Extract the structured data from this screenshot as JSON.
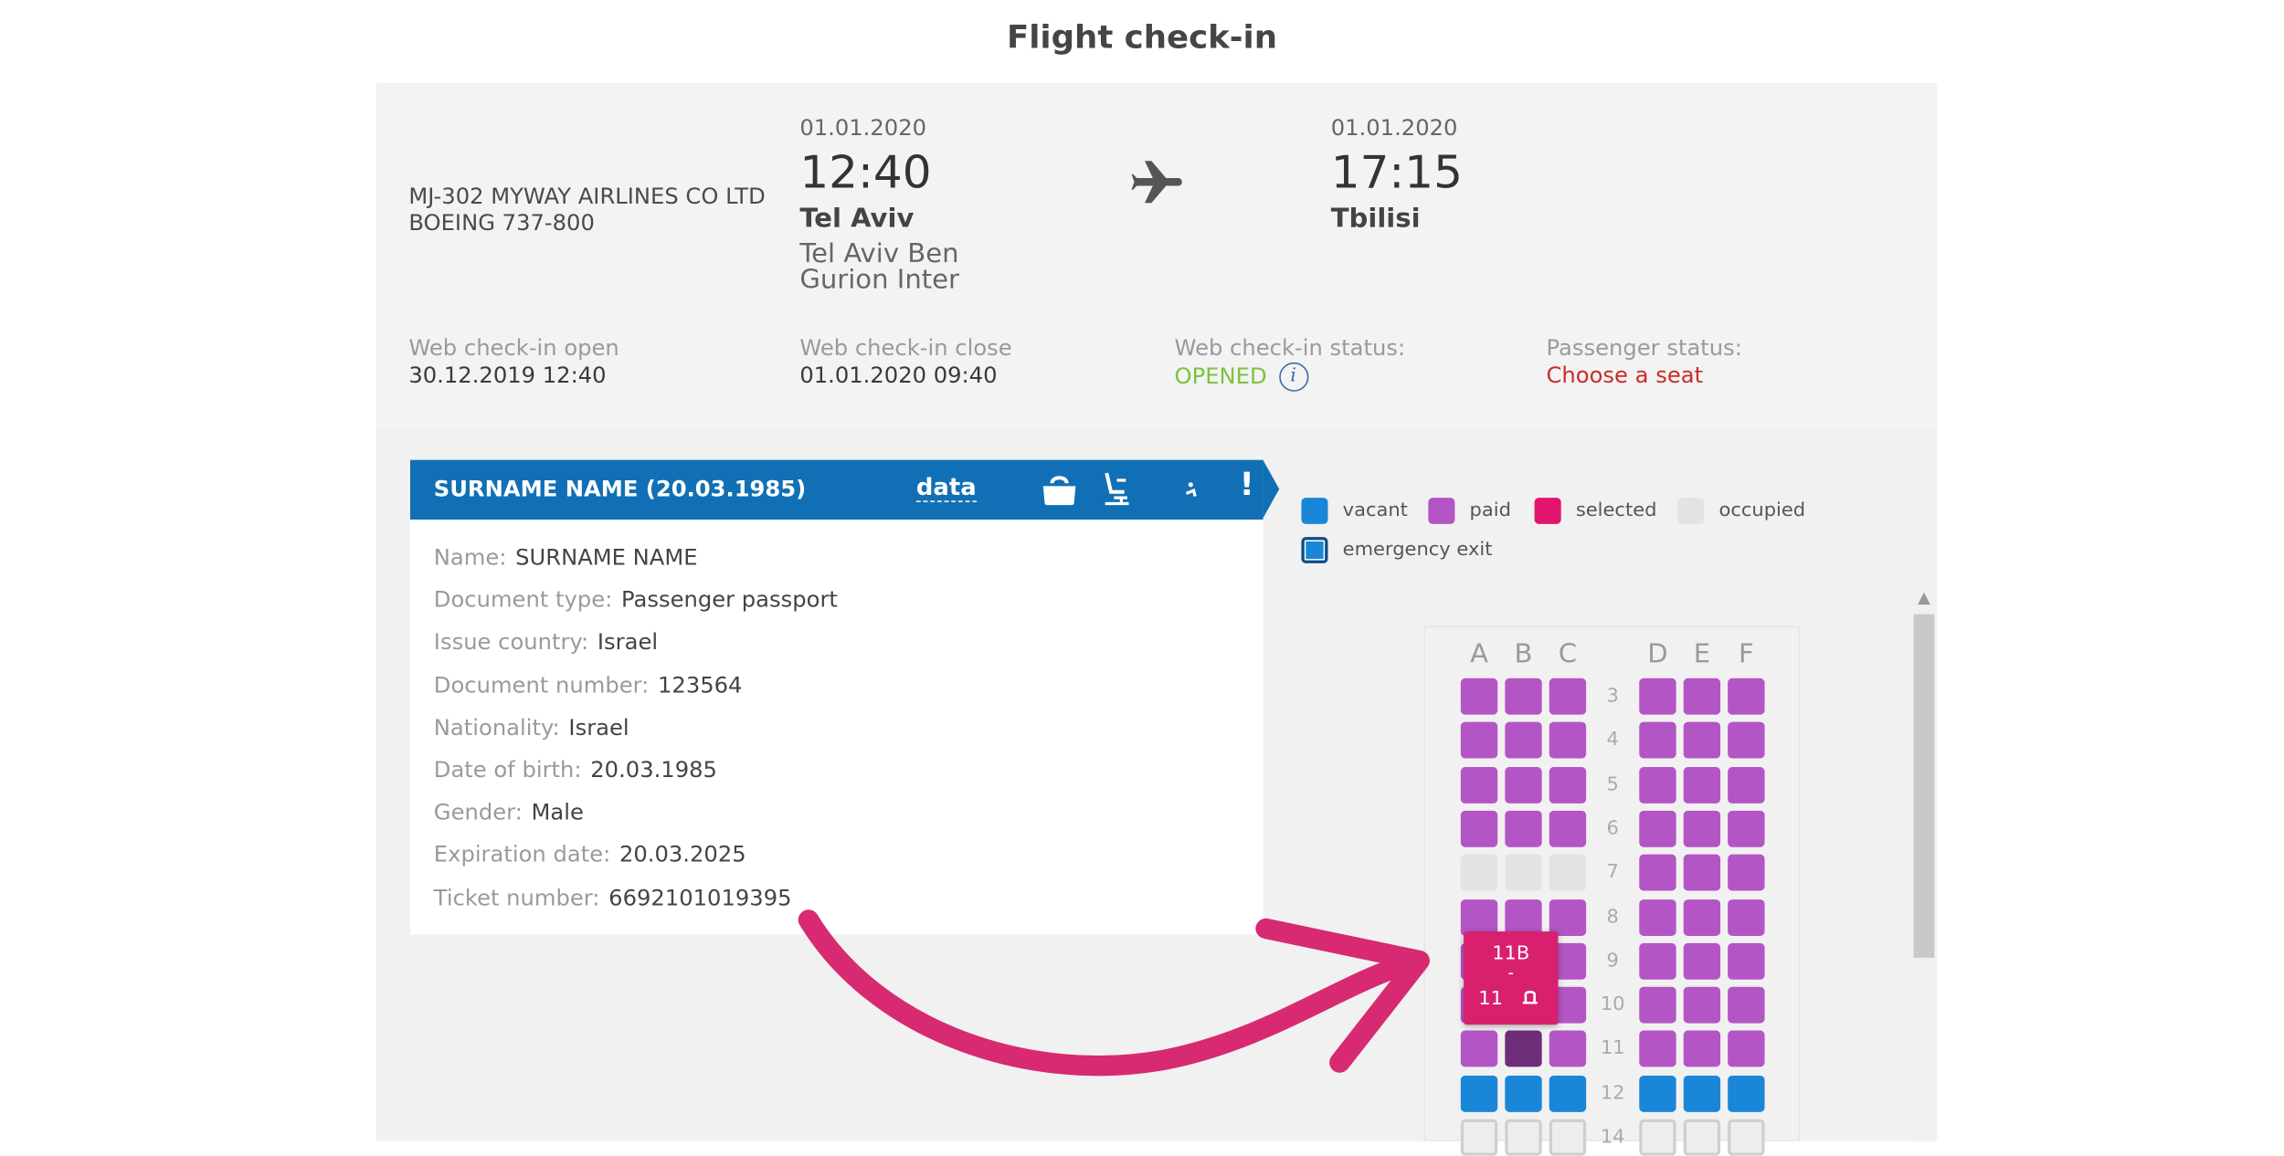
{
  "page": {
    "title": "Flight check-in"
  },
  "flight": {
    "airline_line": "MJ-302 MYWAY AIRLINES CO LTD",
    "aircraft": "BOEING 737-800",
    "departure": {
      "date": "01.01.2020",
      "time": "12:40",
      "city": "Tel Aviv",
      "airport": "Tel Aviv Ben Gurion Inter"
    },
    "arrival": {
      "date": "01.01.2020",
      "time": "17:15",
      "city": "Tbilisi"
    },
    "plane_icon": "airplane-icon"
  },
  "status": {
    "checkin_open_label": "Web check-in open",
    "checkin_open_value": "30.12.2019 12:40",
    "checkin_close_label": "Web check-in close",
    "checkin_close_value": "01.01.2020 09:40",
    "checkin_status_label": "Web check-in status:",
    "checkin_status_value": "OPENED",
    "info_symbol": "i",
    "passenger_status_label": "Passenger status:",
    "passenger_status_value": "Choose a seat"
  },
  "passenger": {
    "header_name": "SURNAME NAME (20.03.1985)",
    "data_tab": "data",
    "alert_symbol": "!",
    "fields": [
      {
        "key": "Name:",
        "value": "SURNAME NAME"
      },
      {
        "key": "Document type:",
        "value": "Passenger passport"
      },
      {
        "key": "Issue country:",
        "value": "Israel"
      },
      {
        "key": "Document number:",
        "value": "123564"
      },
      {
        "key": "Nationality:",
        "value": "Israel"
      },
      {
        "key": "Date of birth:",
        "value": "20.03.1985"
      },
      {
        "key": "Gender:",
        "value": "Male"
      },
      {
        "key": "Expiration date:",
        "value": "20.03.2025"
      },
      {
        "key": "Ticket number:",
        "value": "6692101019395"
      }
    ]
  },
  "legend": {
    "vacant": "vacant",
    "paid": "paid",
    "selected": "selected",
    "occupied": "occupied",
    "emergency_exit": "emergency exit"
  },
  "colors": {
    "vacant": "#1a86d8",
    "paid": "#b455c5",
    "selected": "#e3146f",
    "occupied": "#e3e3e3",
    "hovered": "#6e2d79",
    "header_blue": "#1170b5",
    "arrow": "#d72a72"
  },
  "seatmap": {
    "columns_left": [
      "A",
      "B",
      "C"
    ],
    "columns_right": [
      "D",
      "E",
      "F"
    ],
    "rows": [
      {
        "num": "3",
        "seats": [
          "paid",
          "paid",
          "paid",
          "paid",
          "paid",
          "paid"
        ]
      },
      {
        "num": "4",
        "seats": [
          "paid",
          "paid",
          "paid",
          "paid",
          "paid",
          "paid"
        ]
      },
      {
        "num": "5",
        "seats": [
          "paid",
          "paid",
          "paid",
          "paid",
          "paid",
          "paid"
        ]
      },
      {
        "num": "6",
        "seats": [
          "paid",
          "paid",
          "paid",
          "paid",
          "paid",
          "paid"
        ]
      },
      {
        "num": "7",
        "seats": [
          "occupied",
          "occupied",
          "occupied",
          "paid",
          "paid",
          "paid"
        ]
      },
      {
        "num": "8",
        "seats": [
          "paid",
          "paid",
          "paid",
          "paid",
          "paid",
          "paid"
        ]
      },
      {
        "num": "9",
        "seats": [
          "paid",
          "paid",
          "paid",
          "paid",
          "paid",
          "paid"
        ]
      },
      {
        "num": "10",
        "seats": [
          "paid",
          "paid",
          "paid",
          "paid",
          "paid",
          "paid"
        ]
      },
      {
        "num": "11",
        "seats": [
          "paid",
          "hovered",
          "paid",
          "paid",
          "paid",
          "paid"
        ]
      },
      {
        "num": "12",
        "seats": [
          "vacant",
          "vacant",
          "vacant",
          "vacant",
          "vacant",
          "vacant"
        ]
      },
      {
        "num": "14",
        "seats": [
          "occupied",
          "occupied",
          "occupied",
          "occupied",
          "occupied",
          "occupied"
        ]
      }
    ]
  },
  "tooltip": {
    "seat": "11B",
    "sep": "-",
    "price": "11"
  }
}
